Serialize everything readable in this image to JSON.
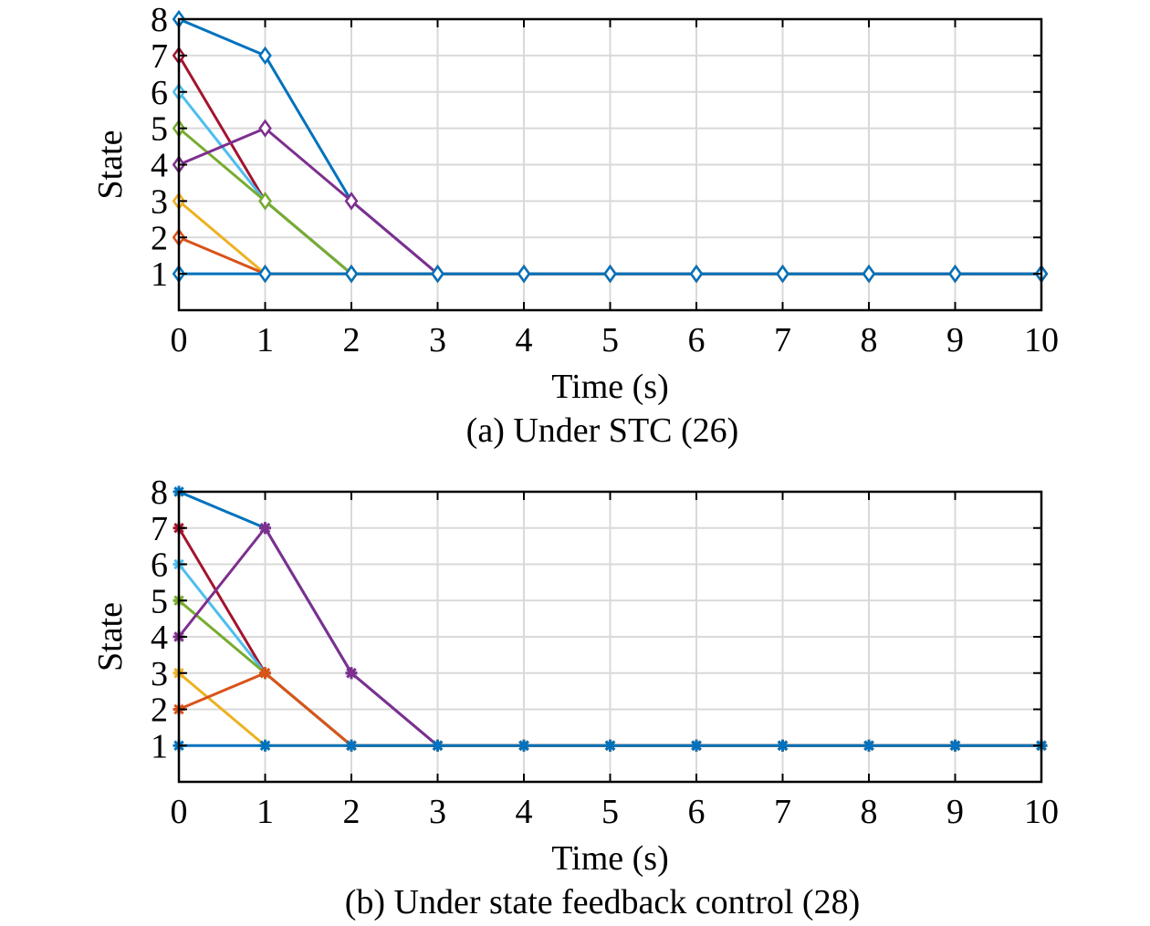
{
  "chart_data": [
    {
      "type": "line",
      "panel": "a",
      "caption": "(a) Under STC (26)",
      "xlabel": "Time (s)",
      "ylabel": "State",
      "xlim": [
        0,
        10
      ],
      "ylim": [
        0,
        8
      ],
      "xticks": [
        "0",
        "1",
        "2",
        "3",
        "4",
        "5",
        "6",
        "7",
        "8",
        "9",
        "10"
      ],
      "yticks": [
        "1",
        "2",
        "3",
        "4",
        "5",
        "6",
        "7",
        "8"
      ],
      "grid": true,
      "marker": "diamond",
      "x": [
        0,
        1,
        2,
        3,
        4,
        5,
        6,
        7,
        8,
        9,
        10
      ],
      "series": [
        {
          "color": "#0072BD",
          "values": [
            1,
            1,
            1,
            1,
            1,
            1,
            1,
            1,
            1,
            1,
            1
          ]
        },
        {
          "color": "#D95319",
          "values": [
            2,
            1,
            1,
            1,
            1,
            1,
            1,
            1,
            1,
            1,
            1
          ]
        },
        {
          "color": "#EDB120",
          "values": [
            3,
            1,
            1,
            1,
            1,
            1,
            1,
            1,
            1,
            1,
            1
          ]
        },
        {
          "color": "#7E2F8E",
          "values": [
            4,
            5,
            3,
            1,
            1,
            1,
            1,
            1,
            1,
            1,
            1
          ]
        },
        {
          "color": "#77AC30",
          "values": [
            5,
            3,
            1,
            1,
            1,
            1,
            1,
            1,
            1,
            1,
            1
          ]
        },
        {
          "color": "#4DBEEE",
          "values": [
            6,
            3,
            1,
            1,
            1,
            1,
            1,
            1,
            1,
            1,
            1
          ]
        },
        {
          "color": "#A2142F",
          "values": [
            7,
            3,
            1,
            1,
            1,
            1,
            1,
            1,
            1,
            1,
            1
          ]
        },
        {
          "color": "#0072BD",
          "values": [
            8,
            7,
            3,
            1,
            1,
            1,
            1,
            1,
            1,
            1,
            1
          ]
        }
      ]
    },
    {
      "type": "line",
      "panel": "b",
      "caption": "(b) Under state feedback control (28)",
      "xlabel": "Time (s)",
      "ylabel": "State",
      "xlim": [
        0,
        10
      ],
      "ylim": [
        0,
        8
      ],
      "xticks": [
        "0",
        "1",
        "2",
        "3",
        "4",
        "5",
        "6",
        "7",
        "8",
        "9",
        "10"
      ],
      "yticks": [
        "1",
        "2",
        "3",
        "4",
        "5",
        "6",
        "7",
        "8"
      ],
      "grid": true,
      "marker": "asterisk",
      "x": [
        0,
        1,
        2,
        3,
        4,
        5,
        6,
        7,
        8,
        9,
        10
      ],
      "series": [
        {
          "color": "#0072BD",
          "values": [
            1,
            1,
            1,
            1,
            1,
            1,
            1,
            1,
            1,
            1,
            1
          ]
        },
        {
          "color": "#D95319",
          "values": [
            2,
            3,
            1,
            1,
            1,
            1,
            1,
            1,
            1,
            1,
            1
          ]
        },
        {
          "color": "#EDB120",
          "values": [
            3,
            1,
            1,
            1,
            1,
            1,
            1,
            1,
            1,
            1,
            1
          ]
        },
        {
          "color": "#7E2F8E",
          "values": [
            4,
            7,
            3,
            1,
            1,
            1,
            1,
            1,
            1,
            1,
            1
          ]
        },
        {
          "color": "#77AC30",
          "values": [
            5,
            3,
            1,
            1,
            1,
            1,
            1,
            1,
            1,
            1,
            1
          ]
        },
        {
          "color": "#4DBEEE",
          "values": [
            6,
            3,
            1,
            1,
            1,
            1,
            1,
            1,
            1,
            1,
            1
          ]
        },
        {
          "color": "#A2142F",
          "values": [
            7,
            3,
            1,
            1,
            1,
            1,
            1,
            1,
            1,
            1,
            1
          ]
        },
        {
          "color": "#0072BD",
          "values": [
            8,
            7,
            3,
            1,
            1,
            1,
            1,
            1,
            1,
            1,
            1
          ]
        }
      ]
    }
  ]
}
